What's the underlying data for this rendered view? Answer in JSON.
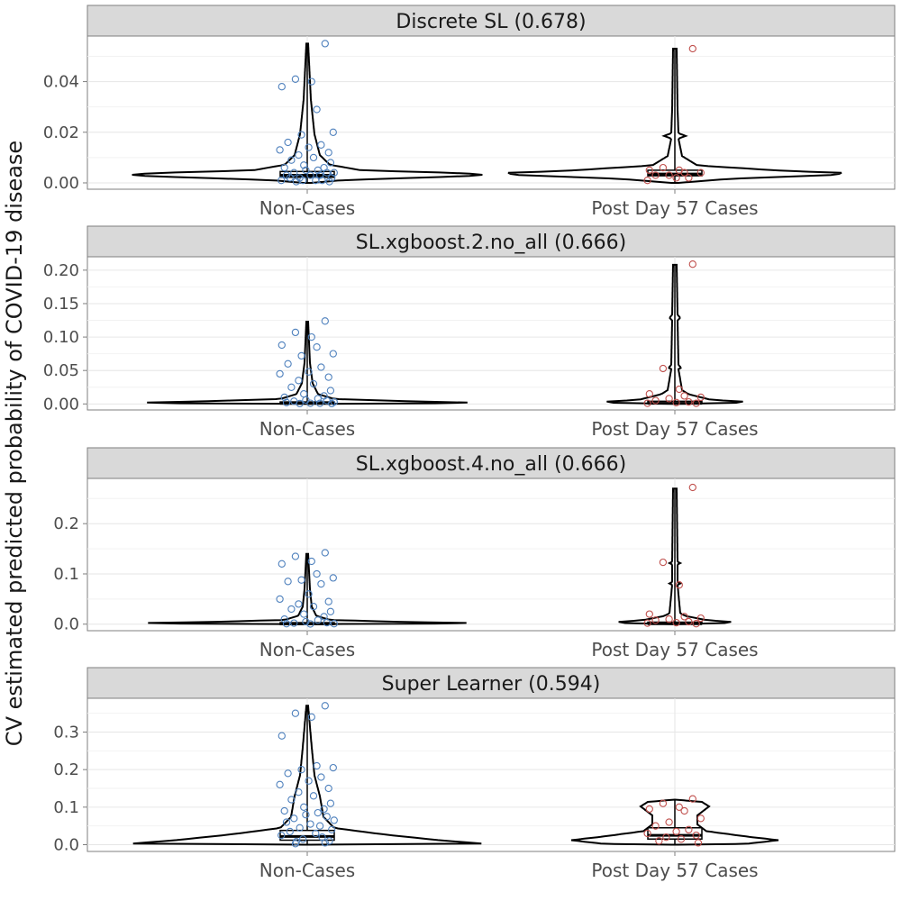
{
  "chart_data": {
    "type": "violin",
    "ylabel": "CV estimated predicted probability of COVID-19 disease",
    "categories": [
      "Non-Cases",
      "Post Day 57 Cases"
    ],
    "colors": {
      "Non-Cases": "#4f81bd",
      "Post Day 57 Cases": "#c0504d"
    },
    "grid": true,
    "panels": [
      {
        "title": "Discrete SL (0.678)",
        "ylim": [
          -0.0025,
          0.058
        ],
        "yticks": [
          0.0,
          0.02,
          0.04
        ],
        "ytick_labels": [
          "0.00",
          "0.02",
          "0.04"
        ],
        "groups": [
          {
            "category": "Non-Cases",
            "y_max": 0.055,
            "box": {
              "q1": 0.0022,
              "median": 0.003,
              "q3": 0.0045
            },
            "points": [
              0.055,
              0.041,
              0.04,
              0.038,
              0.029,
              0.02,
              0.019,
              0.016,
              0.015,
              0.014,
              0.013,
              0.012,
              0.011,
              0.01,
              0.009,
              0.008,
              0.007,
              0.006,
              0.006,
              0.005,
              0.005,
              0.004,
              0.004,
              0.004,
              0.003,
              0.003,
              0.003,
              0.002,
              0.002,
              0.002,
              0.001,
              0.001,
              0.001,
              0.001,
              0.0005,
              0.0005
            ]
          },
          {
            "category": "Post Day 57 Cases",
            "y_max": 0.053,
            "box": {
              "q1": 0.0028,
              "median": 0.0035,
              "q3": 0.005
            },
            "points": [
              0.053,
              0.006,
              0.005,
              0.005,
              0.004,
              0.004,
              0.003,
              0.003,
              0.002,
              0.002,
              0.001
            ]
          }
        ]
      },
      {
        "title": "SL.xgboost.2.no_all (0.666)",
        "ylim": [
          -0.009,
          0.22
        ],
        "yticks": [
          0.0,
          0.05,
          0.1,
          0.15,
          0.2
        ],
        "ytick_labels": [
          "0.00",
          "0.05",
          "0.10",
          "0.15",
          "0.20"
        ],
        "groups": [
          {
            "category": "Non-Cases",
            "y_max": 0.123,
            "box": {
              "q1": 0.0005,
              "median": 0.001,
              "q3": 0.003
            },
            "points": [
              0.124,
              0.107,
              0.1,
              0.088,
              0.085,
              0.075,
              0.072,
              0.06,
              0.055,
              0.048,
              0.045,
              0.04,
              0.035,
              0.03,
              0.025,
              0.02,
              0.015,
              0.012,
              0.01,
              0.008,
              0.006,
              0.005,
              0.004,
              0.003,
              0.002,
              0.001,
              0.001,
              0.0005,
              0.0005
            ]
          },
          {
            "category": "Post Day 57 Cases",
            "y_max": 0.208,
            "box": {
              "q1": 0.0005,
              "median": 0.001,
              "q3": 0.004
            },
            "points": [
              0.209,
              0.053,
              0.022,
              0.015,
              0.012,
              0.01,
              0.008,
              0.005,
              0.003,
              0.002,
              0.001,
              0.001
            ]
          }
        ]
      },
      {
        "title": "SL.xgboost.4.no_all (0.666)",
        "ylim": [
          -0.013,
          0.29
        ],
        "yticks": [
          0.0,
          0.1,
          0.2
        ],
        "ytick_labels": [
          "0.0",
          "0.1",
          "0.2"
        ],
        "groups": [
          {
            "category": "Non-Cases",
            "y_max": 0.14,
            "box": {
              "q1": 0.0005,
              "median": 0.001,
              "q3": 0.003
            },
            "points": [
              0.142,
              0.135,
              0.125,
              0.12,
              0.1,
              0.092,
              0.088,
              0.085,
              0.08,
              0.06,
              0.05,
              0.045,
              0.04,
              0.035,
              0.03,
              0.025,
              0.02,
              0.015,
              0.01,
              0.008,
              0.005,
              0.003,
              0.002,
              0.001,
              0.001,
              0.0005
            ]
          },
          {
            "category": "Post Day 57 Cases",
            "y_max": 0.27,
            "box": {
              "q1": 0.0005,
              "median": 0.001,
              "q3": 0.004
            },
            "points": [
              0.272,
              0.123,
              0.078,
              0.02,
              0.015,
              0.012,
              0.01,
              0.008,
              0.005,
              0.003,
              0.002,
              0.001
            ]
          }
        ]
      },
      {
        "title": "Super Learner (0.594)",
        "ylim": [
          -0.018,
          0.39
        ],
        "yticks": [
          0.0,
          0.1,
          0.2,
          0.3
        ],
        "ytick_labels": [
          "0.0",
          "0.1",
          "0.2",
          "0.3"
        ],
        "groups": [
          {
            "category": "Non-Cases",
            "y_max": 0.37,
            "box": {
              "q1": 0.012,
              "median": 0.022,
              "q3": 0.038
            },
            "points": [
              0.37,
              0.35,
              0.34,
              0.29,
              0.21,
              0.205,
              0.2,
              0.19,
              0.18,
              0.17,
              0.16,
              0.15,
              0.14,
              0.13,
              0.12,
              0.11,
              0.1,
              0.095,
              0.09,
              0.085,
              0.08,
              0.075,
              0.07,
              0.065,
              0.06,
              0.055,
              0.05,
              0.045,
              0.04,
              0.035,
              0.03,
              0.025,
              0.02,
              0.015,
              0.01,
              0.008,
              0.005,
              0.003
            ]
          },
          {
            "category": "Post Day 57 Cases",
            "y_max": 0.12,
            "box": {
              "q1": 0.015,
              "median": 0.025,
              "q3": 0.045
            },
            "points": [
              0.122,
              0.11,
              0.1,
              0.095,
              0.09,
              0.07,
              0.06,
              0.05,
              0.04,
              0.035,
              0.03,
              0.025,
              0.02,
              0.015,
              0.01,
              0.005
            ]
          }
        ]
      }
    ]
  }
}
